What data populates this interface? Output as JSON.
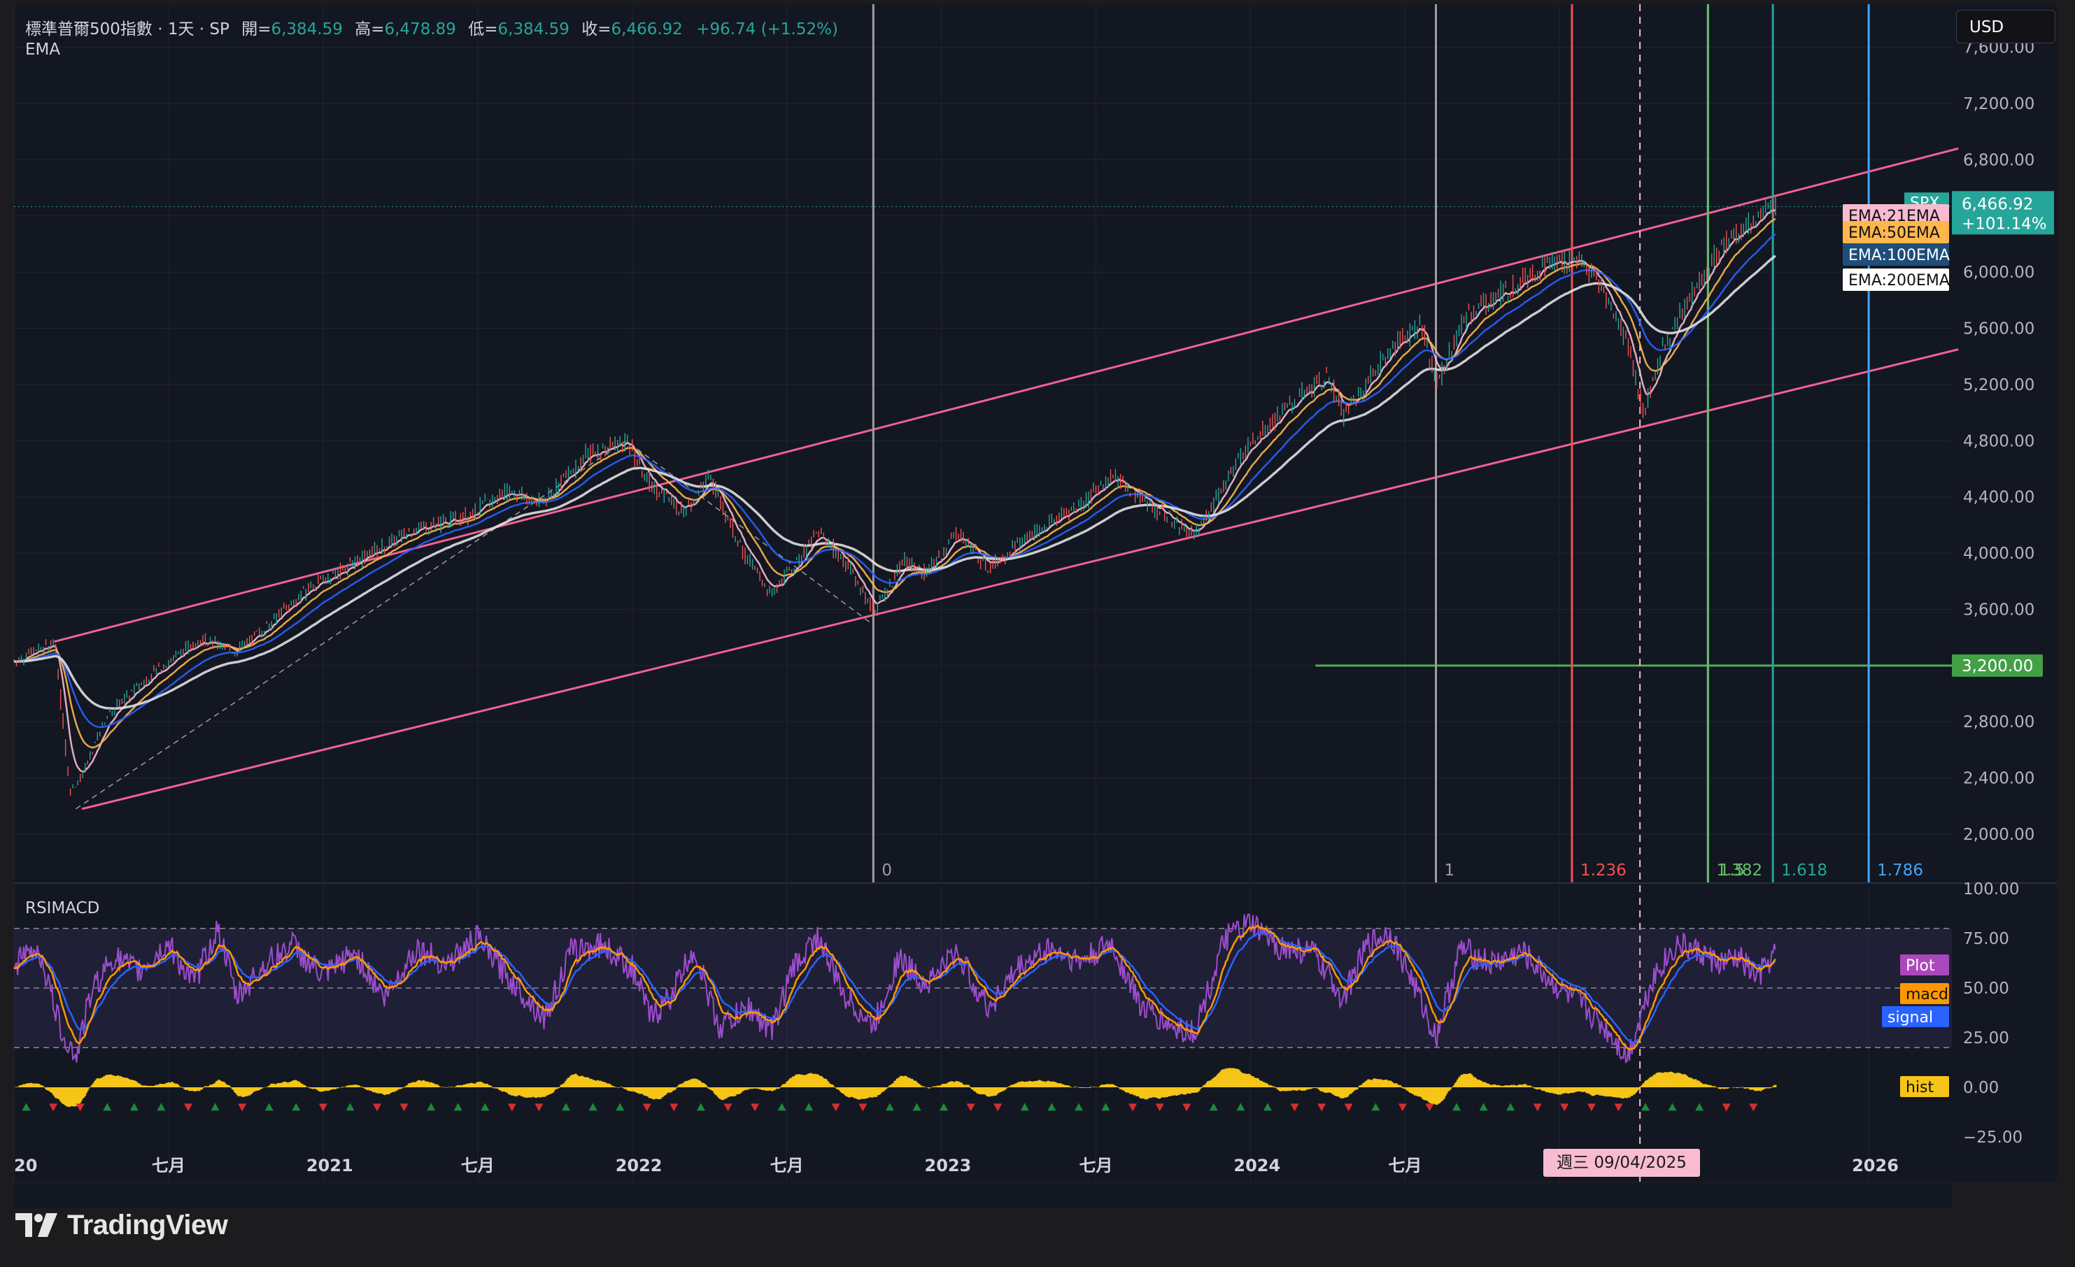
{
  "header": {
    "symbol_line": "標準普爾500指數 · 1天 · SP",
    "open_label": "開=",
    "open": "6,384.59",
    "high_label": "高=",
    "high": "6,478.89",
    "low_label": "低=",
    "low": "6,384.59",
    "close_label": "收=",
    "close": "6,466.92",
    "change": "+96.74 (+1.52%)",
    "indicator": "EMA"
  },
  "currency": "USD",
  "rsi_panel_title": "RSIMACD",
  "brand": "TradingView",
  "crosshair_date": "週三 09/04/2025",
  "colors": {
    "background": "#1c1c1f",
    "pane": "#131722",
    "channel": "#f06292",
    "price_up": "#26a69a",
    "price_down": "#ef5350",
    "ema21": "#f8bbd0",
    "ema50": "#ffb74d",
    "ema100": "#2962ff",
    "ema200": "#e0e0e0",
    "rsi": "#9c4dcc",
    "macd": "#ff9800",
    "signal": "#2962ff",
    "hist": "#f5c518",
    "level_3200": "#4caf50"
  },
  "chart_data": [
    {
      "type": "line",
      "symbol": "SPX",
      "y_scale": "linear",
      "ylim": [
        1700,
        7500
      ],
      "y_ticks": [
        "7,600.00",
        "7,200.00",
        "6,800.00",
        "6,400.00",
        "6,000.00",
        "5,600.00",
        "5,200.00",
        "4,800.00",
        "4,400.00",
        "4,000.00",
        "3,600.00",
        "3,200.00",
        "2,800.00",
        "2,400.00",
        "2,000.00"
      ],
      "x_ticks": [
        "20",
        "七月",
        "2021",
        "七月",
        "2022",
        "七月",
        "2023",
        "七月",
        "2024",
        "七月",
        "20",
        "2026"
      ],
      "x_tick_dates": [
        2020.0,
        2020.5,
        2021.0,
        2021.5,
        2022.0,
        2022.5,
        2023.0,
        2023.5,
        2024.0,
        2024.5,
        2025.0,
        2026.0
      ],
      "x_range": [
        2020.0,
        2026.26
      ],
      "price_path": [
        [
          2020.0,
          3230
        ],
        [
          2020.13,
          3370
        ],
        [
          2020.18,
          2300
        ],
        [
          2020.22,
          2420
        ],
        [
          2020.3,
          2850
        ],
        [
          2020.45,
          3150
        ],
        [
          2020.6,
          3390
        ],
        [
          2020.72,
          3300
        ],
        [
          2020.8,
          3450
        ],
        [
          2020.95,
          3750
        ],
        [
          2021.1,
          3930
        ],
        [
          2021.3,
          4180
        ],
        [
          2021.45,
          4250
        ],
        [
          2021.6,
          4450
        ],
        [
          2021.7,
          4350
        ],
        [
          2021.85,
          4700
        ],
        [
          2021.98,
          4800
        ],
        [
          2022.05,
          4500
        ],
        [
          2022.17,
          4300
        ],
        [
          2022.25,
          4550
        ],
        [
          2022.36,
          4000
        ],
        [
          2022.45,
          3700
        ],
        [
          2022.6,
          4150
        ],
        [
          2022.7,
          3900
        ],
        [
          2022.78,
          3580
        ],
        [
          2022.88,
          3950
        ],
        [
          2022.95,
          3850
        ],
        [
          2023.05,
          4150
        ],
        [
          2023.15,
          3900
        ],
        [
          2023.3,
          4150
        ],
        [
          2023.45,
          4350
        ],
        [
          2023.55,
          4550
        ],
        [
          2023.7,
          4300
        ],
        [
          2023.82,
          4120
        ],
        [
          2023.9,
          4450
        ],
        [
          2024.0,
          4800
        ],
        [
          2024.15,
          5100
        ],
        [
          2024.25,
          5250
        ],
        [
          2024.3,
          4980
        ],
        [
          2024.45,
          5450
        ],
        [
          2024.55,
          5650
        ],
        [
          2024.6,
          5200
        ],
        [
          2024.7,
          5700
        ],
        [
          2024.85,
          5900
        ],
        [
          2024.95,
          6050
        ],
        [
          2025.05,
          6100
        ],
        [
          2025.12,
          5950
        ],
        [
          2025.22,
          5500
        ],
        [
          2025.27,
          4980
        ],
        [
          2025.33,
          5450
        ],
        [
          2025.45,
          5950
        ],
        [
          2025.55,
          6250
        ],
        [
          2025.65,
          6400
        ],
        [
          2025.7,
          6466.92
        ]
      ],
      "ema_series": [
        {
          "name": "EMA:21EMA",
          "color": "#f8bbd0",
          "lag": 0.05
        },
        {
          "name": "EMA:50EMA",
          "color": "#ffb74d",
          "lag": 0.12
        },
        {
          "name": "EMA:100EMA",
          "color": "#2962ff",
          "lag": 0.22
        },
        {
          "name": "EMA:200EMA",
          "color": "#e0e0e0",
          "lag": 0.4
        }
      ],
      "channel": {
        "upper": [
          [
            2020.13,
            3370
          ],
          [
            2026.29,
            6880
          ]
        ],
        "lower": [
          [
            2020.22,
            2180
          ],
          [
            2026.29,
            5450
          ]
        ]
      },
      "dashed_trendline": [
        [
          2020.2,
          2180
        ],
        [
          2021.98,
          4800
        ],
        [
          2022.78,
          3490
        ]
      ],
      "horizontal_level": {
        "y": 3200,
        "label": "3,200.00",
        "from": 2024.21
      },
      "fib_time_lines": [
        {
          "x": 2022.78,
          "label": "0",
          "color": "#9e9e9e"
        },
        {
          "x": 2024.6,
          "label": "1",
          "color": "#9e9e9e"
        },
        {
          "x": 2025.04,
          "label": "1.236",
          "color": "#ef5350"
        },
        {
          "x": 2025.26,
          "label": "",
          "color": "#f8bbd0",
          "dashed": true
        },
        {
          "x": 2025.48,
          "label": "1.382",
          "color": "#66bb6a"
        },
        {
          "x": 2025.48,
          "label": "1.5",
          "color": "#66bb6a"
        },
        {
          "x": 2025.69,
          "label": "1.618",
          "color": "#26a69a"
        },
        {
          "x": 2026.0,
          "label": "1.786",
          "color": "#42a5f5"
        }
      ],
      "last_price": {
        "label": "SPX",
        "value": "6,466.92",
        "change": "+101.14%"
      },
      "ema_labels": [
        "EMA:21EMA",
        "EMA:50EMA",
        "EMA:100EMA",
        "EMA:200EMA"
      ]
    },
    {
      "type": "line",
      "name": "RSIMACD",
      "ylim": [
        -30,
        100
      ],
      "y_ticks": [
        "100.00",
        "75.00",
        "50.00",
        "25.00",
        "0.00",
        "−25.00"
      ],
      "bands": [
        80,
        50,
        20
      ],
      "series": [
        {
          "name": "Plot",
          "color": "#9c4dcc"
        },
        {
          "name": "macd",
          "color": "#ff9800"
        },
        {
          "name": "signal",
          "color": "#2962ff"
        },
        {
          "name": "hist",
          "color": "#f5c518"
        }
      ],
      "rsi_path": [
        [
          2020.0,
          62
        ],
        [
          2020.08,
          70
        ],
        [
          2020.15,
          30
        ],
        [
          2020.2,
          15
        ],
        [
          2020.25,
          48
        ],
        [
          2020.32,
          66
        ],
        [
          2020.4,
          58
        ],
        [
          2020.5,
          72
        ],
        [
          2020.58,
          52
        ],
        [
          2020.66,
          80
        ],
        [
          2020.72,
          45
        ],
        [
          2020.8,
          60
        ],
        [
          2020.9,
          72
        ],
        [
          2021.0,
          55
        ],
        [
          2021.1,
          68
        ],
        [
          2021.2,
          45
        ],
        [
          2021.3,
          70
        ],
        [
          2021.4,
          62
        ],
        [
          2021.5,
          75
        ],
        [
          2021.6,
          55
        ],
        [
          2021.72,
          35
        ],
        [
          2021.8,
          68
        ],
        [
          2021.9,
          72
        ],
        [
          2022.0,
          60
        ],
        [
          2022.06,
          35
        ],
        [
          2022.12,
          45
        ],
        [
          2022.2,
          70
        ],
        [
          2022.28,
          30
        ],
        [
          2022.38,
          40
        ],
        [
          2022.45,
          28
        ],
        [
          2022.52,
          60
        ],
        [
          2022.6,
          76
        ],
        [
          2022.68,
          48
        ],
        [
          2022.78,
          30
        ],
        [
          2022.86,
          65
        ],
        [
          2022.95,
          52
        ],
        [
          2023.05,
          68
        ],
        [
          2023.15,
          40
        ],
        [
          2023.25,
          60
        ],
        [
          2023.35,
          70
        ],
        [
          2023.45,
          63
        ],
        [
          2023.55,
          72
        ],
        [
          2023.65,
          40
        ],
        [
          2023.75,
          30
        ],
        [
          2023.82,
          28
        ],
        [
          2023.92,
          75
        ],
        [
          2024.0,
          82
        ],
        [
          2024.1,
          70
        ],
        [
          2024.2,
          68
        ],
        [
          2024.3,
          45
        ],
        [
          2024.38,
          72
        ],
        [
          2024.45,
          78
        ],
        [
          2024.52,
          55
        ],
        [
          2024.6,
          25
        ],
        [
          2024.68,
          70
        ],
        [
          2024.78,
          62
        ],
        [
          2024.88,
          68
        ],
        [
          2024.98,
          52
        ],
        [
          2025.08,
          40
        ],
        [
          2025.16,
          28
        ],
        [
          2025.22,
          15
        ],
        [
          2025.3,
          55
        ],
        [
          2025.38,
          72
        ],
        [
          2025.45,
          68
        ],
        [
          2025.52,
          62
        ],
        [
          2025.58,
          65
        ],
        [
          2025.64,
          55
        ],
        [
          2025.7,
          68
        ]
      ]
    }
  ]
}
